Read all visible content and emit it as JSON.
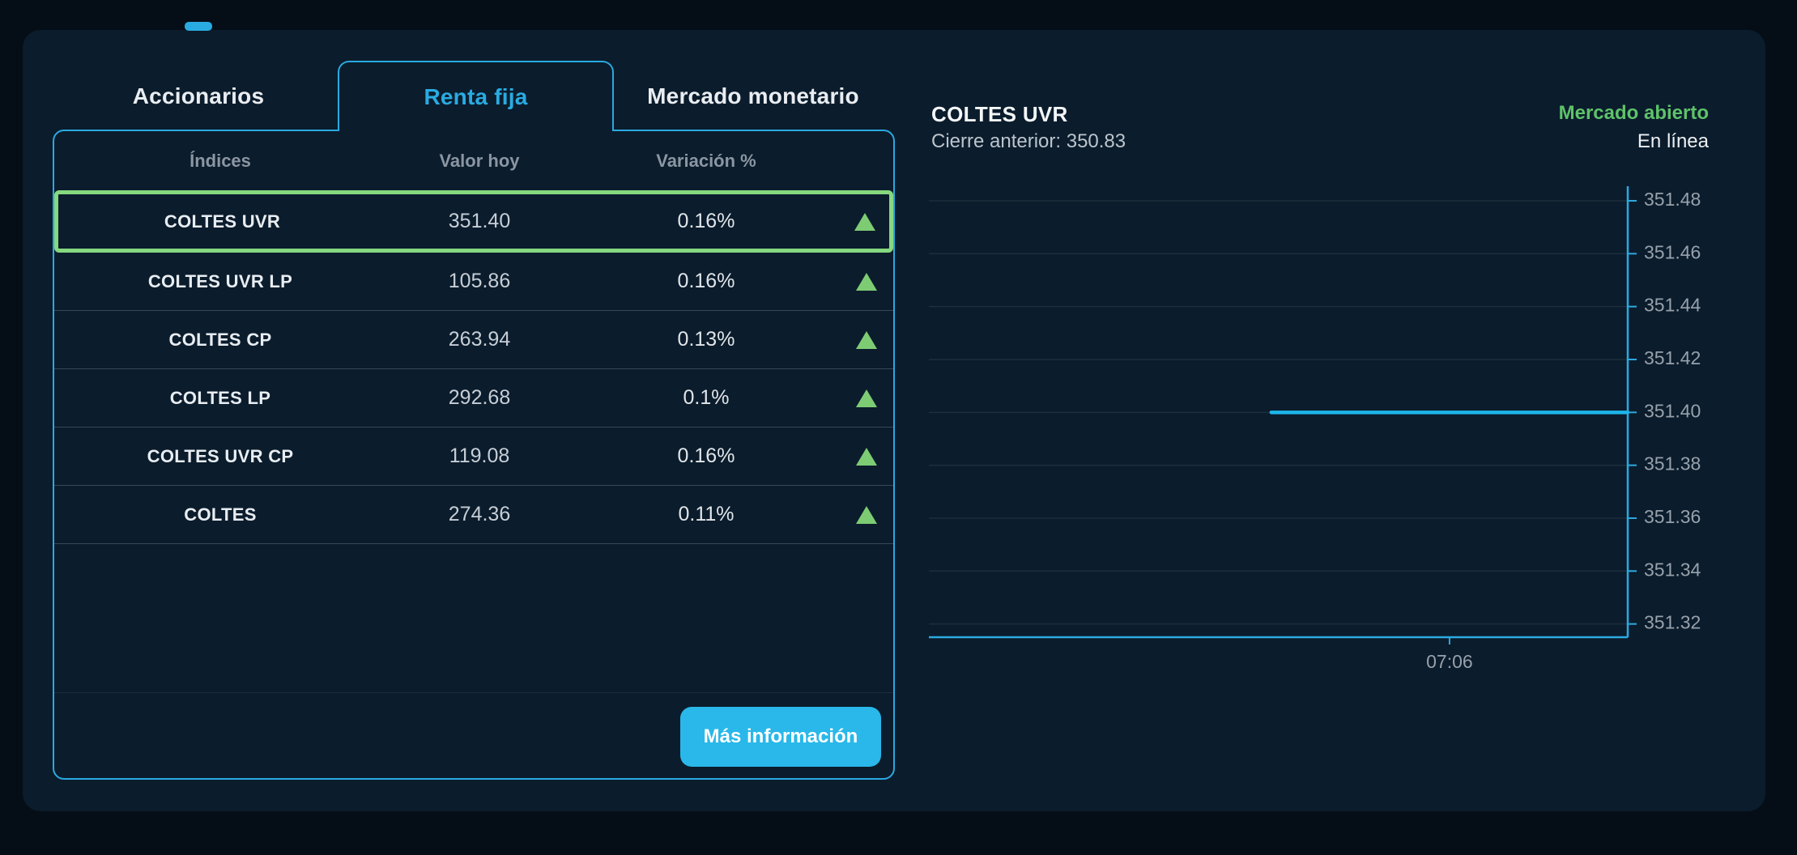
{
  "tabs": [
    {
      "label": "Accionarios",
      "active": false
    },
    {
      "label": "Renta fija",
      "active": true
    },
    {
      "label": "Mercado monetario",
      "active": false
    }
  ],
  "indices_table": {
    "headers": [
      "Índices",
      "Valor hoy",
      "Variación %"
    ],
    "rows": [
      {
        "name": "COLTES UVR",
        "value": "351.40",
        "change_pct": "0.16%",
        "direction": "up",
        "selected": true
      },
      {
        "name": "COLTES UVR LP",
        "value": "105.86",
        "change_pct": "0.16%",
        "direction": "up",
        "selected": false
      },
      {
        "name": "COLTES CP",
        "value": "263.94",
        "change_pct": "0.13%",
        "direction": "up",
        "selected": false
      },
      {
        "name": "COLTES LP",
        "value": "292.68",
        "change_pct": "0.1%",
        "direction": "up",
        "selected": false
      },
      {
        "name": "COLTES UVR CP",
        "value": "119.08",
        "change_pct": "0.16%",
        "direction": "up",
        "selected": false
      },
      {
        "name": "COLTES",
        "value": "274.36",
        "change_pct": "0.11%",
        "direction": "up",
        "selected": false
      }
    ],
    "more_info_button": "Más información"
  },
  "quote_header": {
    "title": "COLTES UVR",
    "previous_close": "Cierre anterior: 350.83",
    "market_status": "Mercado abierto",
    "connection_status": "En línea"
  },
  "chart_data": {
    "type": "line",
    "title": "",
    "series": [
      {
        "name": "COLTES UVR",
        "flat_value": 351.4,
        "values": [
          351.4,
          351.4
        ],
        "start_fraction": 0.49,
        "end_fraction": 1.0
      }
    ],
    "yticks": [
      "351.48",
      "351.46",
      "351.44",
      "351.42",
      "351.40",
      "351.38",
      "351.36",
      "351.34",
      "351.32"
    ],
    "ytick_step": 0.02,
    "ylim": [
      351.315,
      351.49
    ],
    "xticks": [
      {
        "label": "07:06",
        "fraction": 0.745
      }
    ],
    "grid": true,
    "axis_side": "right",
    "legend": "none"
  },
  "colors": {
    "page_bg": "#050e17",
    "card_bg": "#0b1c2c",
    "accent_blue": "#2ba9e0",
    "active_tab_blue": "#29abe2",
    "data_line_blue": "#1db5ea",
    "button_blue": "#29b8e9",
    "market_open_green": "#5ec26a",
    "triangle_green": "#7dcc74",
    "selected_border_green": "#85d87f",
    "grid_line": "#1c2f3d",
    "tick_label": "#97a1ab"
  }
}
